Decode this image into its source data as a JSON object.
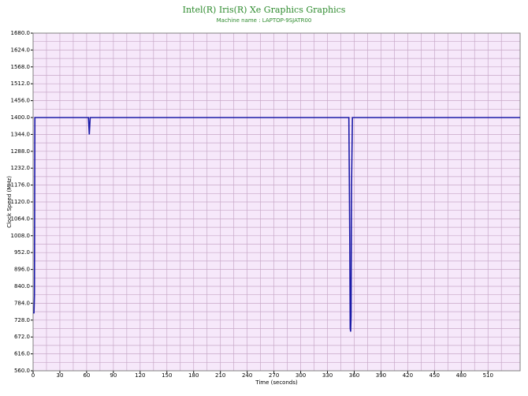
{
  "chart_data": {
    "type": "line",
    "title": "Intel(R) Iris(R) Xe Graphics Graphics",
    "subtitle": "Machine name : LAPTOP-9SJATR00",
    "xlabel": "Time (seconds)",
    "ylabel": "Clock Speed (MHz)",
    "x": [
      0,
      1,
      1.5,
      2,
      62,
      63,
      64,
      65,
      354,
      355,
      355.5,
      356,
      356.5,
      357,
      358,
      546
    ],
    "series": [
      {
        "name": "Clock Speed",
        "color": "#1c1ca8",
        "values": [
          752,
          752,
          810,
          1400,
          1400,
          1344,
          1400,
          1400,
          1400,
          1000,
          700,
          690,
          740,
          1176,
          1400,
          1400
        ]
      }
    ],
    "xlim": [
      0,
      546
    ],
    "ylim": [
      560,
      1680
    ],
    "xticks": [
      0,
      30,
      60,
      90,
      120,
      150,
      180,
      210,
      240,
      270,
      300,
      330,
      360,
      390,
      420,
      450,
      480,
      510
    ],
    "xminorticks": [
      15,
      45,
      75,
      105,
      135,
      165,
      195,
      225,
      255,
      285,
      315,
      345,
      375,
      405,
      435,
      465,
      495,
      525
    ],
    "yticks": [
      {
        "value": 560,
        "label": "560.0"
      },
      {
        "value": 616,
        "label": "616.0"
      },
      {
        "value": 672,
        "label": "672.0"
      },
      {
        "value": 728,
        "label": "728.0"
      },
      {
        "value": 784,
        "label": "784.0"
      },
      {
        "value": 840,
        "label": "840.0"
      },
      {
        "value": 896,
        "label": "896.0"
      },
      {
        "value": 952,
        "label": "952.0"
      },
      {
        "value": 1008,
        "label": "1008.0"
      },
      {
        "value": 1064,
        "label": "1064.0"
      },
      {
        "value": 1120,
        "label": "1120.0"
      },
      {
        "value": 1176,
        "label": "1176.0"
      },
      {
        "value": 1232,
        "label": "1232.0"
      },
      {
        "value": 1288,
        "label": "1288.0"
      },
      {
        "value": 1344,
        "label": "1344.0"
      },
      {
        "value": 1400,
        "label": "1400.0"
      },
      {
        "value": 1456,
        "label": "1456.0"
      },
      {
        "value": 1512,
        "label": "1512.0"
      },
      {
        "value": 1568,
        "label": "1568.0"
      },
      {
        "value": 1624,
        "label": "1624.0"
      },
      {
        "value": 1680,
        "label": "1680.0"
      }
    ],
    "yminorticks": [
      588,
      644,
      700,
      756,
      812,
      868,
      924,
      980,
      1036,
      1092,
      1148,
      1204,
      1260,
      1316,
      1372,
      1428,
      1484,
      1540,
      1596,
      1652
    ],
    "grid": true,
    "background": "#f6e8fa",
    "grid_color": "#c8a8c8",
    "title_color": "#2e8b2e"
  }
}
